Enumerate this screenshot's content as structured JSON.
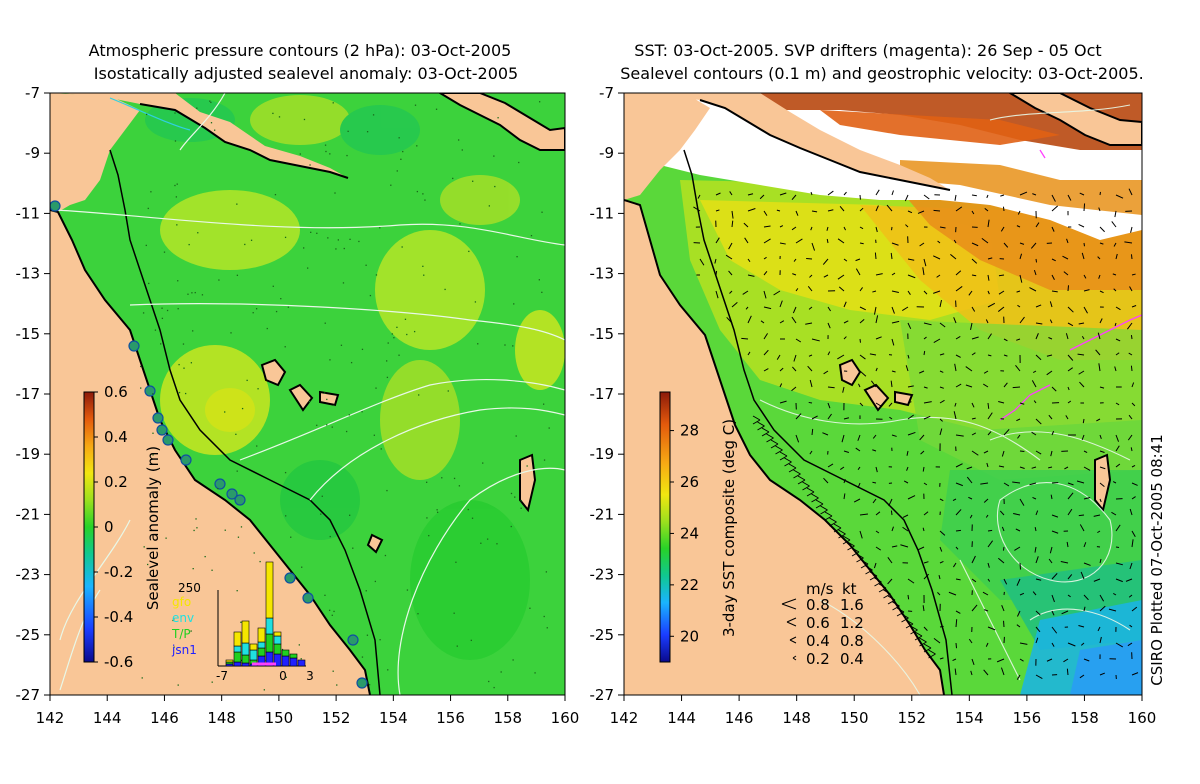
{
  "left_map": {
    "title_line1": "Atmospheric pressure contours (2 hPa): 03-Oct-2005",
    "title_line2": "Isostatically adjusted sealevel anomaly: 03-Oct-2005",
    "y_ticks": [
      "-7",
      "-9",
      "-11",
      "-13",
      "-15",
      "-17",
      "-19",
      "-21",
      "-23",
      "-25",
      "-27"
    ],
    "x_ticks": [
      "142",
      "144",
      "146",
      "148",
      "150",
      "152",
      "154",
      "156",
      "158",
      "160"
    ],
    "colorbar": {
      "label": "Sealevel anomaly (m)",
      "ticks": [
        "0.6",
        "0.4",
        "0.2",
        "0",
        "-0.2",
        "-0.4",
        "-0.6"
      ],
      "range": [
        -0.6,
        0.6
      ]
    },
    "inset": {
      "max_label": "250",
      "legend": [
        {
          "label": "gfo",
          "color": "#f5e600"
        },
        {
          "label": "env",
          "color": "#20e0e0"
        },
        {
          "label": "T/P",
          "color": "#20d020"
        },
        {
          "label": "jsn1",
          "color": "#2020ff"
        }
      ],
      "x_ticks": [
        "-7",
        "0",
        "3"
      ]
    }
  },
  "right_map": {
    "title_line1": "SST: 03-Oct-2005. SVP drifters (magenta): 26 Sep - 05 Oct",
    "title_line2": "Sealevel contours (0.1 m) and geostrophic velocity: 03-Oct-2005.",
    "y_ticks": [
      "-7",
      "-9",
      "-11",
      "-13",
      "-15",
      "-17",
      "-19",
      "-21",
      "-23",
      "-25",
      "-27"
    ],
    "x_ticks": [
      "142",
      "144",
      "146",
      "148",
      "150",
      "152",
      "154",
      "156",
      "158",
      "160"
    ],
    "colorbar": {
      "label": "3-day SST composite (deg C)",
      "ticks": [
        "28",
        "26",
        "24",
        "22",
        "20"
      ],
      "range": [
        19,
        29.5
      ]
    },
    "velocity_legend": {
      "header_ms": "m/s",
      "header_kt": "kt",
      "rows": [
        {
          "ms": "0.8",
          "kt": "1.6"
        },
        {
          "ms": "0.6",
          "kt": "1.2"
        },
        {
          "ms": "0.4",
          "kt": "0.8"
        },
        {
          "ms": "0.2",
          "kt": "0.4"
        }
      ]
    }
  },
  "footer": {
    "plotted": "CSIRO Plotted 07-Oct-2005 08:41"
  },
  "colors": {
    "land": "#f9c697",
    "ocean_green": "#3cd23c",
    "white_cloud": "#ffffff"
  }
}
